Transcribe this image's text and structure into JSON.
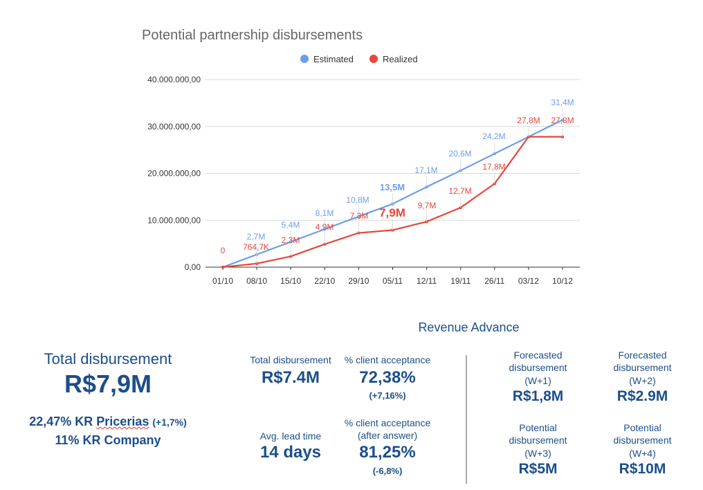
{
  "chart_data": {
    "type": "line",
    "title": "Potential partnership disbursements",
    "categories": [
      "01/10",
      "08/10",
      "15/10",
      "22/10",
      "29/10",
      "05/11",
      "12/11",
      "19/11",
      "26/11",
      "03/12",
      "10/12"
    ],
    "y_ticks": [
      "0,00",
      "10.000.000,00",
      "20.000.000,00",
      "30.000.000,00",
      "40.000.000,00"
    ],
    "ylim": [
      0,
      40000000
    ],
    "grid": true,
    "legend_position": "top",
    "series": [
      {
        "name": "Estimated",
        "color": "#6d9eeb",
        "values": [
          0,
          2700000,
          5400000,
          8100000,
          10800000,
          13500000,
          17100000,
          20600000,
          24200000,
          27800000,
          31400000
        ],
        "labels": [
          "",
          "2,7M",
          "5,4M",
          "8,1M",
          "10,8M",
          "13,5M",
          "17,1M",
          "20,6M",
          "24,2M",
          "",
          "31,4M"
        ]
      },
      {
        "name": "Realized",
        "color": "#e8453c",
        "values": [
          0,
          764700,
          2300000,
          4900000,
          7300000,
          7900000,
          9700000,
          12700000,
          17800000,
          27800000,
          27800000
        ],
        "labels": [
          "0",
          "764,7K",
          "2,3M",
          "4,9M",
          "7,3M",
          "7,9M",
          "9,7M",
          "12,7M",
          "17,8M",
          "27,8M",
          "27,8M"
        ]
      }
    ]
  },
  "summary": {
    "total_label": "Total disbursement",
    "total_value": "R$7,9M",
    "kr_pricerias_pct": "22,47% KR ",
    "kr_pricerias_word": "Pricerias",
    "kr_pricerias_delta": "(+1,7%)",
    "kr_company": "11% KR Company"
  },
  "metrics": {
    "total_disbursement_label": "Total disbursement",
    "total_disbursement_value": "R$7.4M",
    "acceptance_label": "% client acceptance",
    "acceptance_value": "72,38%",
    "acceptance_delta": "(+7,16%)",
    "lead_time_label": "Avg. lead time",
    "lead_time_value": "14 days",
    "acceptance_after_label_1": "% client acceptance",
    "acceptance_after_label_2": "(after answer)",
    "acceptance_after_value": "81,25%",
    "acceptance_after_delta": "(-6,8%)"
  },
  "revenue_advance": {
    "title": "Revenue Advance",
    "cards": [
      {
        "line1": "Forecasted",
        "line2": "disbursement",
        "line3": "(W+1)",
        "value": "R$1,8M"
      },
      {
        "line1": "Forecasted",
        "line2": "disbursement",
        "line3": "(W+2)",
        "value": "R$2.9M"
      },
      {
        "line1": "Potential",
        "line2": "disbursement",
        "line3": "(W+3)",
        "value": "R$5M"
      },
      {
        "line1": "Potential",
        "line2": "disbursement",
        "line3": "(W+4)",
        "value": "R$10M"
      }
    ]
  }
}
